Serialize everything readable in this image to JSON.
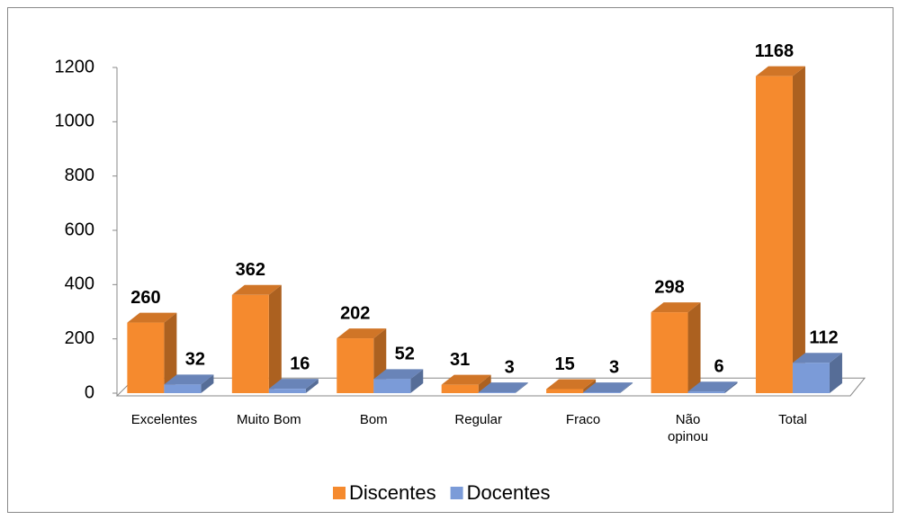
{
  "chart_data": {
    "type": "bar3d",
    "categories": [
      "Excelentes",
      "Muito Bom",
      "Bom",
      "Regular",
      "Fraco",
      "Não opinou",
      "Total"
    ],
    "series": [
      {
        "name": "Discentes",
        "color": "#f58a2e",
        "values": [
          260,
          362,
          202,
          31,
          15,
          298,
          1168
        ]
      },
      {
        "name": "Docentes",
        "color": "#7b9bd8",
        "values": [
          32,
          16,
          52,
          3,
          3,
          6,
          112
        ]
      }
    ],
    "ylim": [
      0,
      1200
    ],
    "yticks": [
      0,
      200,
      400,
      600,
      800,
      1000,
      1200
    ],
    "legend": "bottom"
  }
}
